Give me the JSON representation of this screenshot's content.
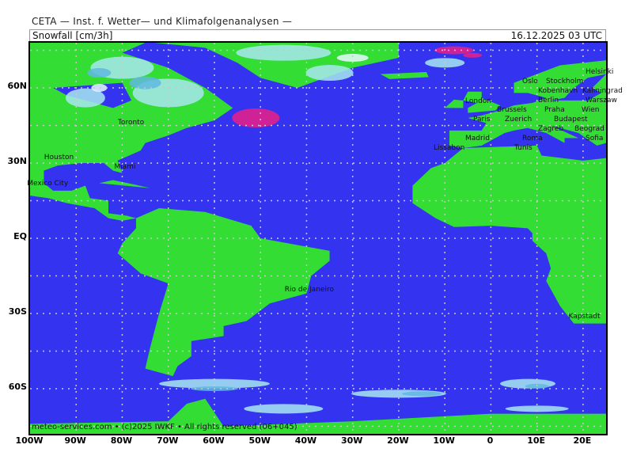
{
  "header": {
    "institute": "CETA — Inst. f. Wetter— und Klimafolgenanalysen —",
    "parameter": "Snowfall [cm/3h]",
    "valid_time": "16.12.2025 03 UTC"
  },
  "map": {
    "projection_extent": {
      "lon": [
        -100,
        25
      ],
      "lat": [
        -78,
        78
      ]
    },
    "colors": {
      "ocean": "#3434f0",
      "land": "#33dd33",
      "snow_light": "#a8e8f0",
      "snow_mid": "#60b8e0",
      "snow_white": "#e8f8ff",
      "snow_heavy": "#e0208c",
      "grid": "#c8c8c8"
    },
    "lat_labels": [
      "60N",
      "30N",
      "EQ",
      "30S",
      "60S"
    ],
    "lon_labels": [
      "100W",
      "90W",
      "80W",
      "70W",
      "60W",
      "50W",
      "40W",
      "30W",
      "20W",
      "10W",
      "0",
      "10E",
      "20E"
    ],
    "cities": [
      "Oslo",
      "Stockholm",
      "Helsinki",
      "London",
      "Kobenhavn",
      "Kaliningrad",
      "Warszaw",
      "Brussels",
      "Berlin",
      "Praha",
      "Paris",
      "Zuerich",
      "Wien",
      "Budapest",
      "Zagreb",
      "Beograd",
      "Sofia",
      "Roma",
      "Madrid",
      "Lissabon",
      "Tunis",
      "Toronto",
      "Houston",
      "Miami",
      "Mexico City",
      "Rio de Janeiro",
      "Kapstadt"
    ],
    "credit": "meteo-services.com • (c)2025 IWKF • All rights reserved (06+045)"
  }
}
